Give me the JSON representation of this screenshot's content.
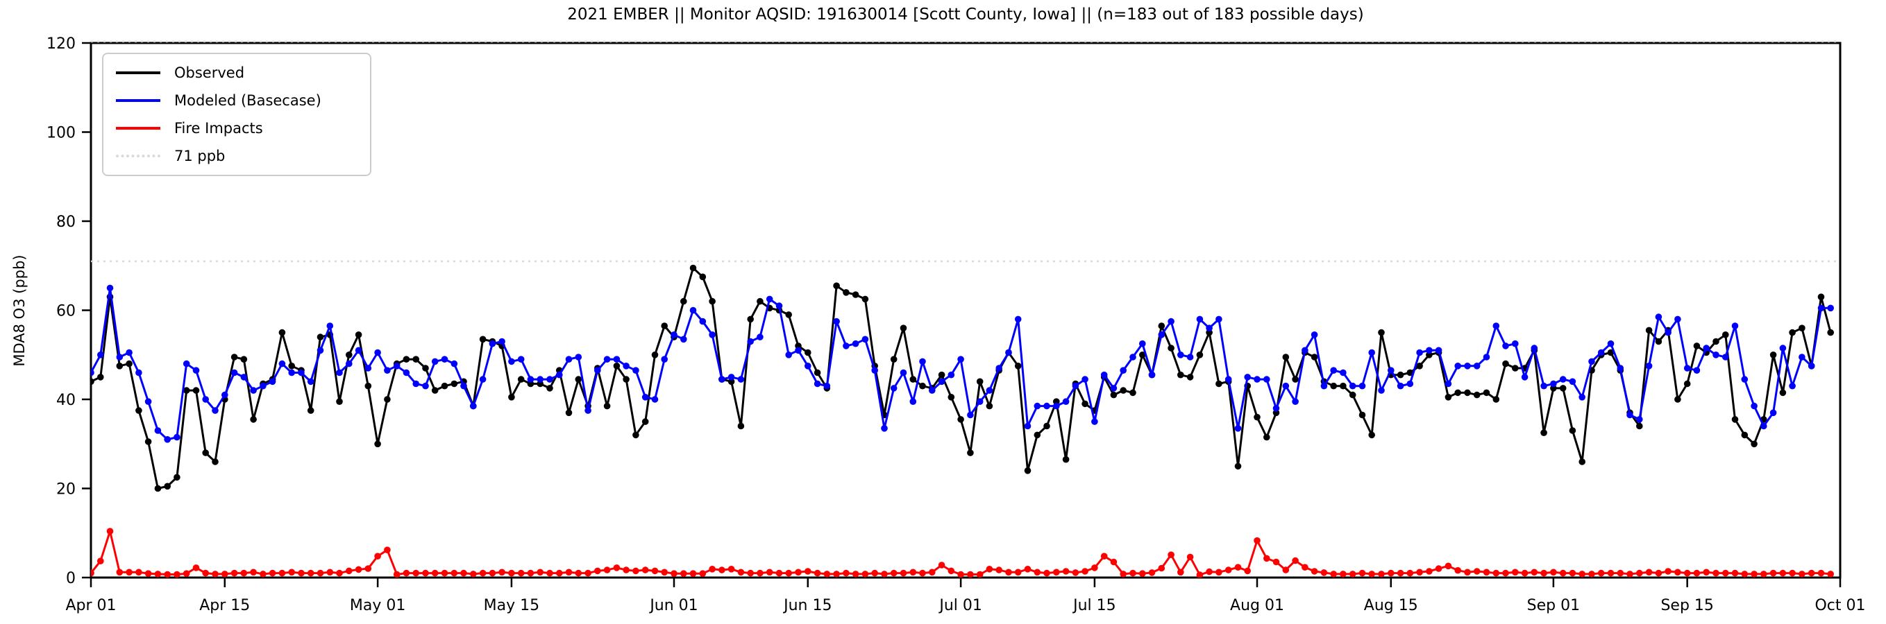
{
  "title": "2021 EMBER || Monitor AQSID: 191630014 [Scott County, Iowa] || (n=183 out of 183 possible days)",
  "legend": {
    "items": [
      {
        "label": "Observed",
        "color": "#000000",
        "style": "solid"
      },
      {
        "label": "Modeled (Basecase)",
        "color": "#0000ff",
        "style": "solid"
      },
      {
        "label": "Fire Impacts",
        "color": "#ff0000",
        "style": "solid"
      },
      {
        "label": "71 ppb",
        "color": "#d9d9d9",
        "style": "dotted"
      }
    ]
  },
  "chart_data": {
    "type": "line",
    "title": "2021 EMBER || Monitor AQSID: 191630014 [Scott County, Iowa] || (n=183 out of 183 possible days)",
    "xlabel": "",
    "ylabel": "MDA8 O3 (ppb)",
    "ylim": [
      0,
      120
    ],
    "y_ticks": [
      0,
      20,
      40,
      60,
      80,
      100,
      120
    ],
    "x_total_days": 183,
    "x_ticks": [
      {
        "label": "Apr 01",
        "day": 0
      },
      {
        "label": "Apr 15",
        "day": 14
      },
      {
        "label": "May 01",
        "day": 30
      },
      {
        "label": "May 15",
        "day": 44
      },
      {
        "label": "Jun 01",
        "day": 61
      },
      {
        "label": "Jun 15",
        "day": 75
      },
      {
        "label": "Jul 01",
        "day": 91
      },
      {
        "label": "Jul 15",
        "day": 105
      },
      {
        "label": "Aug 01",
        "day": 122
      },
      {
        "label": "Aug 15",
        "day": 136
      },
      {
        "label": "Sep 01",
        "day": 153
      },
      {
        "label": "Sep 15",
        "day": 167
      },
      {
        "label": "Oct 01",
        "day": 183
      }
    ],
    "threshold": {
      "label": "71 ppb",
      "value": 71,
      "color": "#d9d9d9"
    },
    "grid": false,
    "legend_position": "upper left",
    "x_start_date": "Apr 01",
    "x_end_date": "Sep 30",
    "series": [
      {
        "name": "Observed",
        "color": "#000000",
        "marker": "circle",
        "values": [
          44,
          45,
          63,
          47.5,
          48,
          37.5,
          30.5,
          20,
          20.5,
          22.5,
          42,
          42,
          28,
          26,
          40,
          49.5,
          49,
          35.5,
          43.5,
          44.5,
          55,
          47.5,
          46.5,
          37.5,
          54,
          54.5,
          39.5,
          50,
          54.5,
          43,
          30,
          40,
          48,
          49,
          49,
          47,
          42,
          43,
          43.5,
          44,
          38.5,
          53.5,
          53,
          52,
          40.5,
          44.5,
          43.5,
          43.5,
          42.5,
          46.5,
          37,
          44.5,
          38.5,
          47,
          38.5,
          47.5,
          44.5,
          32,
          35,
          50,
          56.5,
          54,
          62,
          69.5,
          67.5,
          62,
          44.5,
          44,
          34,
          58,
          62,
          60.5,
          60,
          59,
          52,
          50.5,
          46,
          42.5,
          65.5,
          64,
          63.5,
          62.5,
          47.5,
          36.5,
          49,
          56,
          44.5,
          43,
          42.5,
          45.5,
          40.5,
          35.5,
          28,
          44,
          38.5,
          46.5,
          50.5,
          47.5,
          24,
          32,
          34,
          39.5,
          26.5,
          43.5,
          39,
          37.5,
          45,
          41,
          42,
          41.5,
          50,
          45.5,
          56.5,
          51.5,
          45.5,
          45,
          50,
          55,
          43.5,
          44,
          25,
          43,
          36,
          31.5,
          37,
          49.5,
          44.5,
          50.5,
          49.5,
          44,
          43,
          43,
          41,
          36.5,
          32,
          55,
          45.5,
          45.5,
          46,
          47.5,
          50,
          50.5,
          40.5,
          41.5,
          41.5,
          41,
          41.5,
          40,
          48,
          47,
          47,
          51,
          32.5,
          42.5,
          42.5,
          33,
          26,
          46.5,
          50,
          50.5,
          46.5,
          37,
          34,
          55.5,
          53,
          55.5,
          40,
          43.5,
          52,
          50.5,
          53,
          54.5,
          35.5,
          32,
          30,
          35.5,
          50,
          41.5,
          55,
          56,
          47.5,
          63,
          55
        ]
      },
      {
        "name": "Modeled (Basecase)",
        "color": "#0000ff",
        "marker": "circle",
        "values": [
          46,
          50,
          65,
          49.5,
          50.5,
          46,
          39.5,
          33,
          31,
          31.5,
          48,
          46.5,
          40,
          37.5,
          41,
          46,
          45,
          42,
          43,
          44,
          48,
          46,
          46,
          44,
          51,
          56.5,
          46,
          48,
          51,
          47,
          50.5,
          46.5,
          47.5,
          46,
          43.5,
          43,
          48.5,
          49,
          48,
          43,
          38.5,
          44.5,
          52.5,
          53,
          48.5,
          49,
          44.5,
          44.5,
          44.5,
          45.5,
          49,
          49.5,
          37.5,
          46.5,
          49,
          49,
          47.5,
          46.5,
          40.5,
          40,
          49,
          54.5,
          53.5,
          60,
          57.5,
          54.5,
          44.5,
          45,
          44.5,
          53,
          54,
          62.5,
          61,
          50,
          51,
          47.5,
          43.5,
          43,
          57.5,
          52,
          52.5,
          53.5,
          46.5,
          33.5,
          42.5,
          46,
          39.5,
          48.5,
          42,
          44,
          45.5,
          49,
          36.5,
          39.5,
          42,
          47,
          50.5,
          58,
          34,
          38.5,
          38.5,
          38.5,
          39.5,
          43,
          44.5,
          35,
          45.5,
          42.5,
          46.5,
          49.5,
          52.5,
          45.5,
          54.5,
          57.5,
          50,
          49.5,
          58,
          56,
          58,
          44.5,
          33.5,
          45,
          44.5,
          44.5,
          38,
          43,
          39.5,
          51,
          54.5,
          43,
          46.5,
          46,
          43,
          43,
          50.5,
          42,
          46.5,
          43,
          43.5,
          50.5,
          51,
          51,
          43.5,
          47.5,
          47.5,
          47.5,
          49.5,
          56.5,
          52,
          52.5,
          45,
          51.5,
          43,
          43.5,
          44.5,
          44,
          40.5,
          48.5,
          50.5,
          52.5,
          47,
          36.5,
          35.5,
          47.5,
          58.5,
          55,
          58,
          47,
          46.5,
          51.5,
          50,
          49.5,
          56.5,
          44.5,
          38.5,
          34,
          37,
          51.5,
          43,
          49.5,
          47.5,
          60.5,
          60.5
        ]
      },
      {
        "name": "Fire Impacts",
        "color": "#ff0000",
        "marker": "circle",
        "values": [
          1,
          3.7,
          10.4,
          1.2,
          1.2,
          1.2,
          0.9,
          0.8,
          0.7,
          0.7,
          0.9,
          2.2,
          1,
          0.8,
          0.8,
          1,
          1,
          1.2,
          0.8,
          1,
          1,
          1.2,
          1,
          1,
          1,
          1.2,
          1,
          1.5,
          1.8,
          2,
          4.8,
          6.2,
          0.7,
          1,
          1,
          1,
          1,
          1,
          1,
          1,
          0.8,
          1,
          1,
          1.2,
          1,
          1,
          1,
          1.2,
          1,
          1,
          1.2,
          1,
          1,
          1.5,
          1.7,
          2.2,
          1.7,
          1.5,
          1.7,
          1.5,
          1.2,
          0.9,
          0.9,
          0.9,
          0.9,
          1.9,
          1.7,
          1.9,
          1.2,
          1,
          1,
          1.2,
          1,
          1,
          1.2,
          1.4,
          1,
          0.8,
          0.8,
          1,
          0.8,
          0.8,
          1,
          0.8,
          1,
          1,
          1.2,
          1,
          1.2,
          2.8,
          1.5,
          0.7,
          0.7,
          0.7,
          1.9,
          1.7,
          1.2,
          1.2,
          1.9,
          1.2,
          1,
          1.2,
          1.4,
          1.1,
          1.4,
          2.2,
          4.8,
          3.5,
          0.8,
          1,
          0.9,
          1.1,
          2.1,
          5.1,
          1.2,
          4.6,
          0.6,
          1.3,
          1.2,
          1.7,
          2.3,
          1.5,
          8.3,
          4.3,
          3.5,
          1.7,
          3.8,
          2.3,
          1.4,
          1.1,
          0.8,
          0.8,
          0.8,
          1,
          0.8,
          0.8,
          1,
          1,
          1,
          1.2,
          1.4,
          2,
          2.6,
          1.6,
          1.2,
          1.4,
          1.2,
          1,
          1,
          1.2,
          1,
          1.2,
          1,
          1.2,
          1,
          1,
          0.8,
          0.8,
          1,
          1,
          1,
          0.8,
          1,
          1.2,
          1,
          1.4,
          1.2,
          1,
          1,
          1.2,
          1,
          1,
          1,
          0.8,
          0.8,
          0.8,
          1,
          1,
          1,
          0.8,
          1,
          1,
          0.8
        ]
      }
    ]
  },
  "layout_colors": {
    "background": "#ffffff",
    "spine": "#000000",
    "tick_label": "#000000",
    "threshold_line": "#d9d9d9"
  }
}
